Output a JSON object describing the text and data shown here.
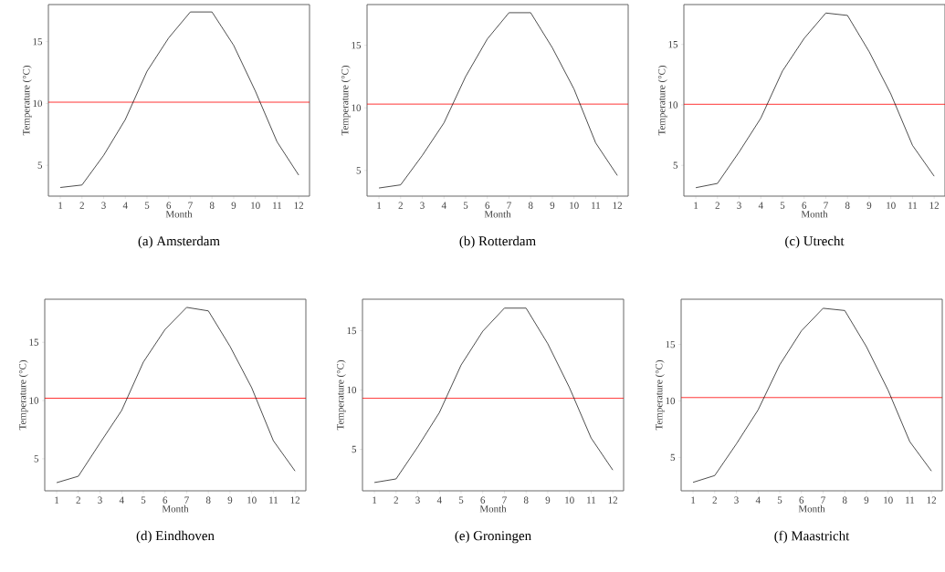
{
  "chart_data": [
    {
      "type": "line",
      "title": "(a) Amsterdam",
      "xlabel": "Month",
      "ylabel": "Temperature (°C)",
      "x": [
        1,
        2,
        3,
        4,
        5,
        6,
        7,
        8,
        9,
        10,
        11,
        12
      ],
      "values": [
        3.2,
        3.4,
        5.8,
        8.7,
        12.6,
        15.3,
        17.4,
        17.4,
        14.7,
        11.0,
        6.9,
        4.2
      ],
      "color": "#000000",
      "xlim": [
        0.45,
        12.5
      ],
      "ylim": [
        2.5,
        18.0
      ],
      "xticks": [
        1,
        2,
        3,
        4,
        5,
        6,
        7,
        8,
        9,
        10,
        11,
        12
      ],
      "yticks": [
        5,
        10,
        15
      ],
      "ref_lines": [
        {
          "axis": "y",
          "value": 10.1,
          "color": "#ff0000"
        }
      ]
    },
    {
      "type": "line",
      "title": "(b) Rotterdam",
      "xlabel": "Month",
      "ylabel": "Temperature (°C)",
      "x": [
        1,
        2,
        3,
        4,
        5,
        6,
        7,
        8,
        9,
        10,
        11,
        12
      ],
      "values": [
        3.6,
        3.85,
        6.2,
        8.8,
        12.5,
        15.5,
        17.6,
        17.6,
        14.8,
        11.5,
        7.2,
        4.6
      ],
      "color": "#000000",
      "xlim": [
        0.45,
        12.5
      ],
      "ylim": [
        2.95,
        18.25
      ],
      "xticks": [
        1,
        2,
        3,
        4,
        5,
        6,
        7,
        8,
        9,
        10,
        11,
        12
      ],
      "yticks": [
        5,
        10,
        15
      ],
      "ref_lines": [
        {
          "axis": "y",
          "value": 10.3,
          "color": "#ff0000"
        }
      ]
    },
    {
      "type": "line",
      "title": "(c) Utrecht",
      "xlabel": "Month",
      "ylabel": "Temperature (°C)",
      "x": [
        1,
        2,
        3,
        4,
        5,
        6,
        7,
        8,
        9,
        10,
        11,
        12
      ],
      "values": [
        3.15,
        3.5,
        6.1,
        8.9,
        12.8,
        15.5,
        17.6,
        17.4,
        14.4,
        10.9,
        6.65,
        4.1
      ],
      "color": "#000000",
      "xlim": [
        0.45,
        12.5
      ],
      "ylim": [
        2.45,
        18.3
      ],
      "xticks": [
        1,
        2,
        3,
        4,
        5,
        6,
        7,
        8,
        9,
        10,
        11,
        12
      ],
      "yticks": [
        5,
        10,
        15
      ],
      "ref_lines": [
        {
          "axis": "y",
          "value": 10.05,
          "color": "#ff0000"
        }
      ]
    },
    {
      "type": "line",
      "title": "(d) Eindhoven",
      "xlabel": "Month",
      "ylabel": "Temperature (°C)",
      "x": [
        1,
        2,
        3,
        4,
        5,
        6,
        7,
        8,
        9,
        10,
        11,
        12
      ],
      "values": [
        2.95,
        3.5,
        6.35,
        9.15,
        13.3,
        16.1,
        18.0,
        17.7,
        14.65,
        11.1,
        6.55,
        3.95
      ],
      "color": "#000000",
      "xlim": [
        0.45,
        12.5
      ],
      "ylim": [
        2.25,
        18.7
      ],
      "xticks": [
        1,
        2,
        3,
        4,
        5,
        6,
        7,
        8,
        9,
        10,
        11,
        12
      ],
      "yticks": [
        5,
        10,
        15
      ],
      "ref_lines": [
        {
          "axis": "y",
          "value": 10.2,
          "color": "#ff0000"
        }
      ]
    },
    {
      "type": "line",
      "title": "(e) Groningen",
      "xlabel": "Month",
      "ylabel": "Temperature (°C)",
      "x": [
        1,
        2,
        3,
        4,
        5,
        6,
        7,
        8,
        9,
        10,
        11,
        12
      ],
      "values": [
        2.2,
        2.5,
        5.2,
        8.1,
        12.1,
        14.95,
        16.9,
        16.9,
        13.9,
        10.2,
        5.95,
        3.25
      ],
      "color": "#000000",
      "xlim": [
        0.45,
        12.5
      ],
      "ylim": [
        1.5,
        17.65
      ],
      "xticks": [
        1,
        2,
        3,
        4,
        5,
        6,
        7,
        8,
        9,
        10,
        11,
        12
      ],
      "yticks": [
        5,
        10,
        15
      ],
      "ref_lines": [
        {
          "axis": "y",
          "value": 9.3,
          "color": "#ff0000"
        }
      ]
    },
    {
      "type": "line",
      "title": "(f) Maastricht",
      "xlabel": "Month",
      "ylabel": "Temperature (°C)",
      "x": [
        1,
        2,
        3,
        4,
        5,
        6,
        7,
        8,
        9,
        10,
        11,
        12
      ],
      "values": [
        2.8,
        3.4,
        6.2,
        9.2,
        13.2,
        16.2,
        18.2,
        18.0,
        14.8,
        10.95,
        6.4,
        3.8
      ],
      "color": "#000000",
      "xlim": [
        0.45,
        12.5
      ],
      "ylim": [
        2.05,
        19.0
      ],
      "xticks": [
        1,
        2,
        3,
        4,
        5,
        6,
        7,
        8,
        9,
        10,
        11,
        12
      ],
      "yticks": [
        5,
        10,
        15
      ],
      "ref_lines": [
        {
          "axis": "y",
          "value": 10.3,
          "color": "#ff0000"
        }
      ]
    }
  ]
}
